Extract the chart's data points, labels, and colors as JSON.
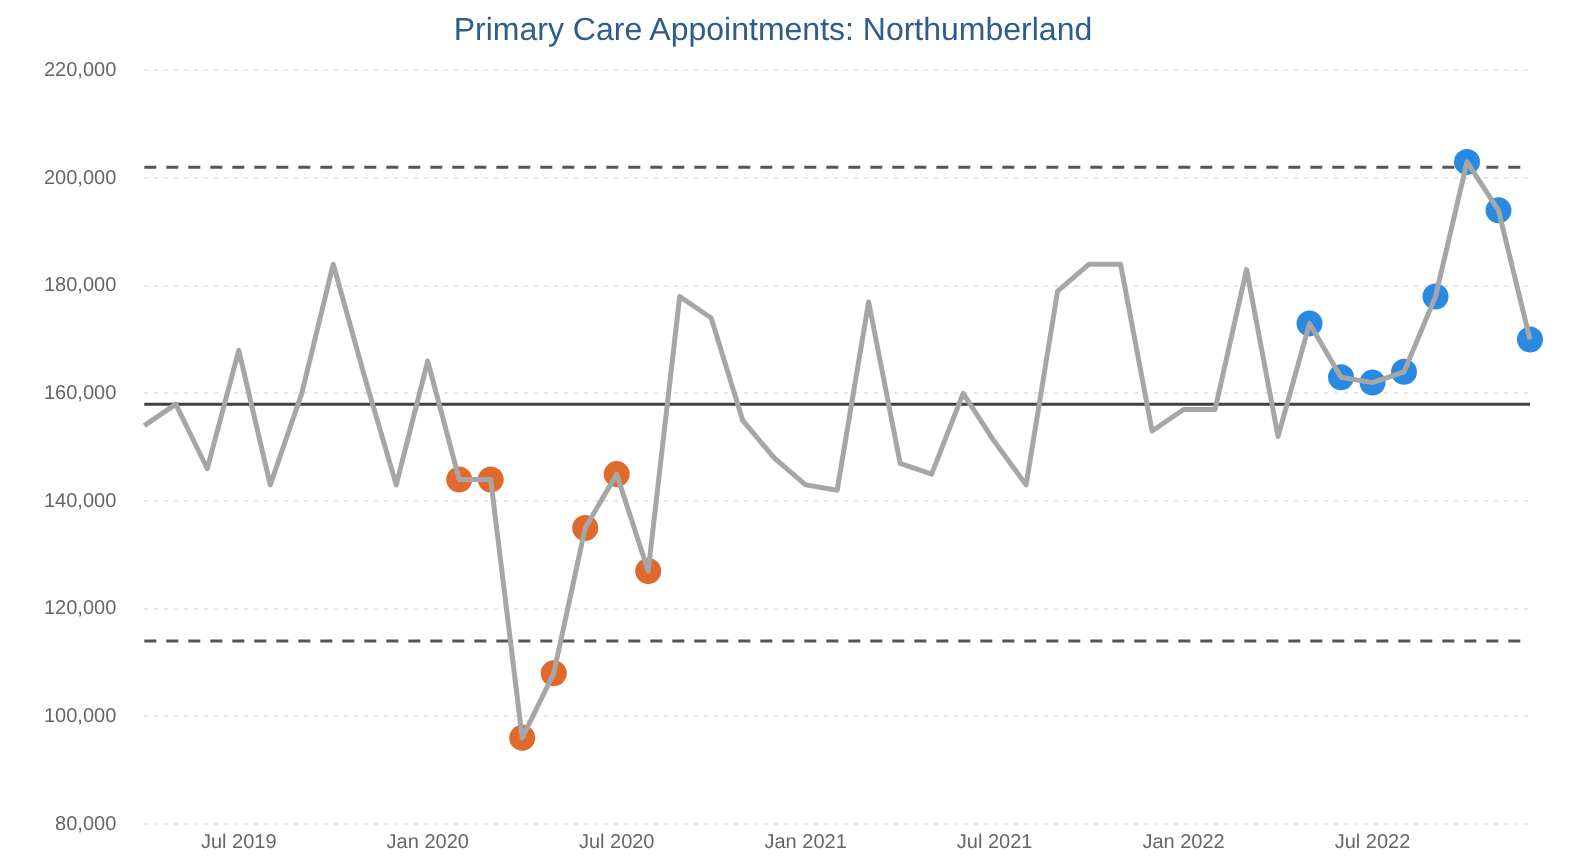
{
  "chart_data": {
    "type": "line",
    "title": "Primary Care Appointments: Northumberland",
    "x": [
      "2019-04",
      "2019-05",
      "2019-06",
      "2019-07",
      "2019-08",
      "2019-09",
      "2019-10",
      "2019-11",
      "2019-12",
      "2020-01",
      "2020-02",
      "2020-03",
      "2020-04",
      "2020-05",
      "2020-06",
      "2020-07",
      "2020-08",
      "2020-09",
      "2020-10",
      "2020-11",
      "2020-12",
      "2021-01",
      "2021-02",
      "2021-03",
      "2021-04",
      "2021-05",
      "2021-06",
      "2021-07",
      "2021-08",
      "2021-09",
      "2021-10",
      "2021-11",
      "2021-12",
      "2022-01",
      "2022-02",
      "2022-03",
      "2022-04",
      "2022-05",
      "2022-06",
      "2022-07",
      "2022-08",
      "2022-09",
      "2022-10",
      "2022-11",
      "2022-12"
    ],
    "series": [
      {
        "type": "line",
        "color": "#a6a6a6",
        "marker": "none",
        "values": [
          154000,
          158000,
          146000,
          168000,
          143000,
          160000,
          184000,
          163000,
          143000,
          166000,
          144000,
          144000,
          96000,
          108000,
          135000,
          145000,
          127000,
          178000,
          174000,
          155000,
          148000,
          143000,
          142000,
          177000,
          147000,
          145000,
          160000,
          151000,
          143000,
          179000,
          184000,
          184000,
          153000,
          157000,
          157000,
          183000,
          152000,
          173000,
          163000,
          162000,
          164000,
          178000,
          203000,
          194000,
          170000
        ]
      },
      {
        "type": "scatter",
        "color": "#e0692e",
        "marker": "circle",
        "x": [
          "2020-02",
          "2020-03",
          "2020-04",
          "2020-05",
          "2020-06",
          "2020-07",
          "2020-08"
        ],
        "values": [
          144000,
          144000,
          96000,
          108000,
          135000,
          145000,
          127000
        ]
      },
      {
        "type": "scatter",
        "color": "#2a8ae2",
        "marker": "circle",
        "x": [
          "2022-05",
          "2022-06",
          "2022-07",
          "2022-08",
          "2022-09",
          "2022-10",
          "2022-11",
          "2022-12"
        ],
        "values": [
          173000,
          163000,
          162000,
          164000,
          178000,
          203000,
          194000,
          170000
        ]
      }
    ],
    "xlim": [
      "2019-04",
      "2022-12"
    ],
    "xticks": [
      {
        "value": "2019-07",
        "label": "Jul 2019"
      },
      {
        "value": "2020-01",
        "label": "Jan 2020"
      },
      {
        "value": "2020-07",
        "label": "Jul 2020"
      },
      {
        "value": "2021-01",
        "label": "Jan 2021"
      },
      {
        "value": "2021-07",
        "label": "Jul 2021"
      },
      {
        "value": "2022-01",
        "label": "Jan 2022"
      },
      {
        "value": "2022-07",
        "label": "Jul 2022"
      }
    ],
    "ylim": [
      80000,
      220000
    ],
    "yticks": [
      {
        "value": 80000,
        "label": "80,000"
      },
      {
        "value": 100000,
        "label": "100,000"
      },
      {
        "value": 120000,
        "label": "120,000"
      },
      {
        "value": 140000,
        "label": "140,000"
      },
      {
        "value": 160000,
        "label": "160,000"
      },
      {
        "value": 180000,
        "label": "180,000"
      },
      {
        "value": 200000,
        "label": "200,000"
      },
      {
        "value": 220000,
        "label": "220,000"
      }
    ],
    "ref_lines": [
      {
        "axis": "y",
        "value": 158000,
        "color": "#404040",
        "line_style": "solid"
      },
      {
        "axis": "y",
        "value": 202000,
        "color": "#555555",
        "line_style": "dashed"
      },
      {
        "axis": "y",
        "value": 114000,
        "color": "#555555",
        "line_style": "dashed"
      }
    ],
    "grid": "y",
    "legend": false
  }
}
